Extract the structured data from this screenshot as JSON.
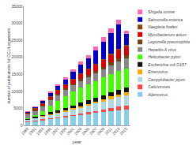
{
  "chart_data": {
    "type": "bar",
    "stacked": true,
    "xlabel": "year",
    "ylabel": "number of publications for CCL4 organisms",
    "categories": [
      "1989",
      "1991",
      "1993",
      "1995",
      "1997",
      "1999",
      "2001",
      "2003",
      "2005",
      "2007",
      "2009",
      "2011",
      "2013",
      "2015"
    ],
    "series": [
      {
        "name": "Adenovirus",
        "color": "#87CEEB",
        "values": [
          1100,
          1350,
          1600,
          1900,
          2100,
          2350,
          2700,
          3000,
          3300,
          3600,
          3900,
          4200,
          4500,
          4700
        ]
      },
      {
        "name": "Caliciviruses",
        "color": "#FF4444",
        "values": [
          100,
          120,
          180,
          220,
          280,
          350,
          420,
          500,
          580,
          680,
          780,
          900,
          1000,
          1100
        ]
      },
      {
        "name": "Campylobacter jejuni",
        "color": "#ADD8E6",
        "values": [
          500,
          620,
          720,
          880,
          1050,
          1250,
          1450,
          1650,
          1900,
          2100,
          2350,
          2600,
          2800,
          3000
        ]
      },
      {
        "name": "Enterovirus",
        "color": "#FFA500",
        "values": [
          150,
          200,
          250,
          300,
          350,
          400,
          450,
          520,
          580,
          640,
          700,
          780,
          850,
          900
        ]
      },
      {
        "name": "Escherichia coli O157",
        "color": "#111111",
        "values": [
          80,
          180,
          330,
          550,
          680,
          780,
          880,
          950,
          1000,
          1050,
          1100,
          1200,
          1300,
          1400
        ]
      },
      {
        "name": "Helicobacter pylori",
        "color": "#44FF00",
        "values": [
          150,
          550,
          1100,
          1950,
          2750,
          3450,
          4000,
          4450,
          4750,
          5000,
          5200,
          5400,
          5600,
          5700
        ]
      },
      {
        "name": "Hepatitis A virus",
        "color": "#888888",
        "values": [
          1200,
          1300,
          1400,
          1550,
          1650,
          1750,
          1900,
          2000,
          2100,
          2200,
          2350,
          2500,
          2700,
          2800
        ]
      },
      {
        "name": "Legionella pneumophila",
        "color": "#704214",
        "values": [
          180,
          230,
          280,
          340,
          400,
          450,
          500,
          560,
          620,
          680,
          780,
          880,
          980,
          1050
        ]
      },
      {
        "name": "Mycobacterium avium",
        "color": "#DD0000",
        "values": [
          280,
          380,
          580,
          800,
          980,
          1150,
          1350,
          1550,
          1750,
          1950,
          2150,
          2400,
          2650,
          2750
        ]
      },
      {
        "name": "Naegleria fowleri",
        "color": "#8B4513",
        "values": [
          40,
          55,
          65,
          75,
          85,
          95,
          105,
          115,
          125,
          135,
          145,
          155,
          165,
          175
        ]
      },
      {
        "name": "Salmonella enterica",
        "color": "#0000CC",
        "values": [
          280,
          380,
          580,
          880,
          1180,
          1500,
          2000,
          2500,
          3000,
          4000,
          5200,
          6200,
          7200,
          3400
        ]
      },
      {
        "name": "Shigella sonnei",
        "color": "#FF69B4",
        "values": [
          180,
          280,
          380,
          480,
          580,
          680,
          800,
          900,
          1000,
          1100,
          1200,
          1300,
          1400,
          950
        ]
      }
    ],
    "ylim": [
      0,
      35000
    ],
    "yticks": [
      0,
      5000,
      10000,
      15000,
      20000,
      25000,
      30000,
      35000
    ],
    "grid": false,
    "legend": "right"
  }
}
